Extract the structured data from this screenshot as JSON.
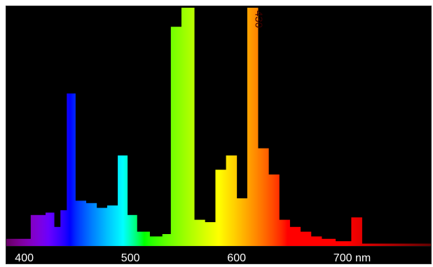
{
  "chart_data": {
    "type": "bar",
    "title": "",
    "xlabel": "",
    "ylabel": "",
    "x_unit": "nm",
    "xlim": [
      380,
      780
    ],
    "ylim": [
      0,
      100
    ],
    "grid": false,
    "legend": "none",
    "background": "#000000",
    "x_ticks": [
      400,
      500,
      600,
      700
    ],
    "x_tick_labels": [
      "400",
      "500",
      "600",
      "700 nm"
    ],
    "peak_annotation": {
      "text": "430",
      "x": 612
    },
    "bins": [
      {
        "x0": 380,
        "x1": 403,
        "value": 3
      },
      {
        "x0": 403,
        "x1": 417,
        "value": 13
      },
      {
        "x0": 417,
        "x1": 425,
        "value": 14
      },
      {
        "x0": 425,
        "x1": 431,
        "value": 8
      },
      {
        "x0": 431,
        "x1": 437,
        "value": 15
      },
      {
        "x0": 437,
        "x1": 445,
        "value": 64
      },
      {
        "x0": 445,
        "x1": 455,
        "value": 19
      },
      {
        "x0": 455,
        "x1": 465,
        "value": 18
      },
      {
        "x0": 465,
        "x1": 475,
        "value": 16
      },
      {
        "x0": 475,
        "x1": 485,
        "value": 17
      },
      {
        "x0": 485,
        "x1": 494,
        "value": 38
      },
      {
        "x0": 494,
        "x1": 503,
        "value": 13
      },
      {
        "x0": 503,
        "x1": 515,
        "value": 6
      },
      {
        "x0": 515,
        "x1": 527,
        "value": 4
      },
      {
        "x0": 527,
        "x1": 535,
        "value": 5
      },
      {
        "x0": 535,
        "x1": 545,
        "value": 92
      },
      {
        "x0": 545,
        "x1": 557,
        "value": 100
      },
      {
        "x0": 557,
        "x1": 567,
        "value": 11
      },
      {
        "x0": 567,
        "x1": 577,
        "value": 10
      },
      {
        "x0": 577,
        "x1": 587,
        "value": 32
      },
      {
        "x0": 587,
        "x1": 597,
        "value": 38
      },
      {
        "x0": 597,
        "x1": 607,
        "value": 20
      },
      {
        "x0": 607,
        "x1": 617,
        "value": 100
      },
      {
        "x0": 617,
        "x1": 627,
        "value": 41
      },
      {
        "x0": 627,
        "x1": 637,
        "value": 30
      },
      {
        "x0": 637,
        "x1": 647,
        "value": 11
      },
      {
        "x0": 647,
        "x1": 657,
        "value": 8
      },
      {
        "x0": 657,
        "x1": 667,
        "value": 6
      },
      {
        "x0": 667,
        "x1": 677,
        "value": 4
      },
      {
        "x0": 677,
        "x1": 690,
        "value": 3
      },
      {
        "x0": 690,
        "x1": 705,
        "value": 2
      },
      {
        "x0": 705,
        "x1": 715,
        "value": 12
      },
      {
        "x0": 715,
        "x1": 760,
        "value": 1
      },
      {
        "x0": 760,
        "x1": 780,
        "value": 1
      }
    ]
  }
}
